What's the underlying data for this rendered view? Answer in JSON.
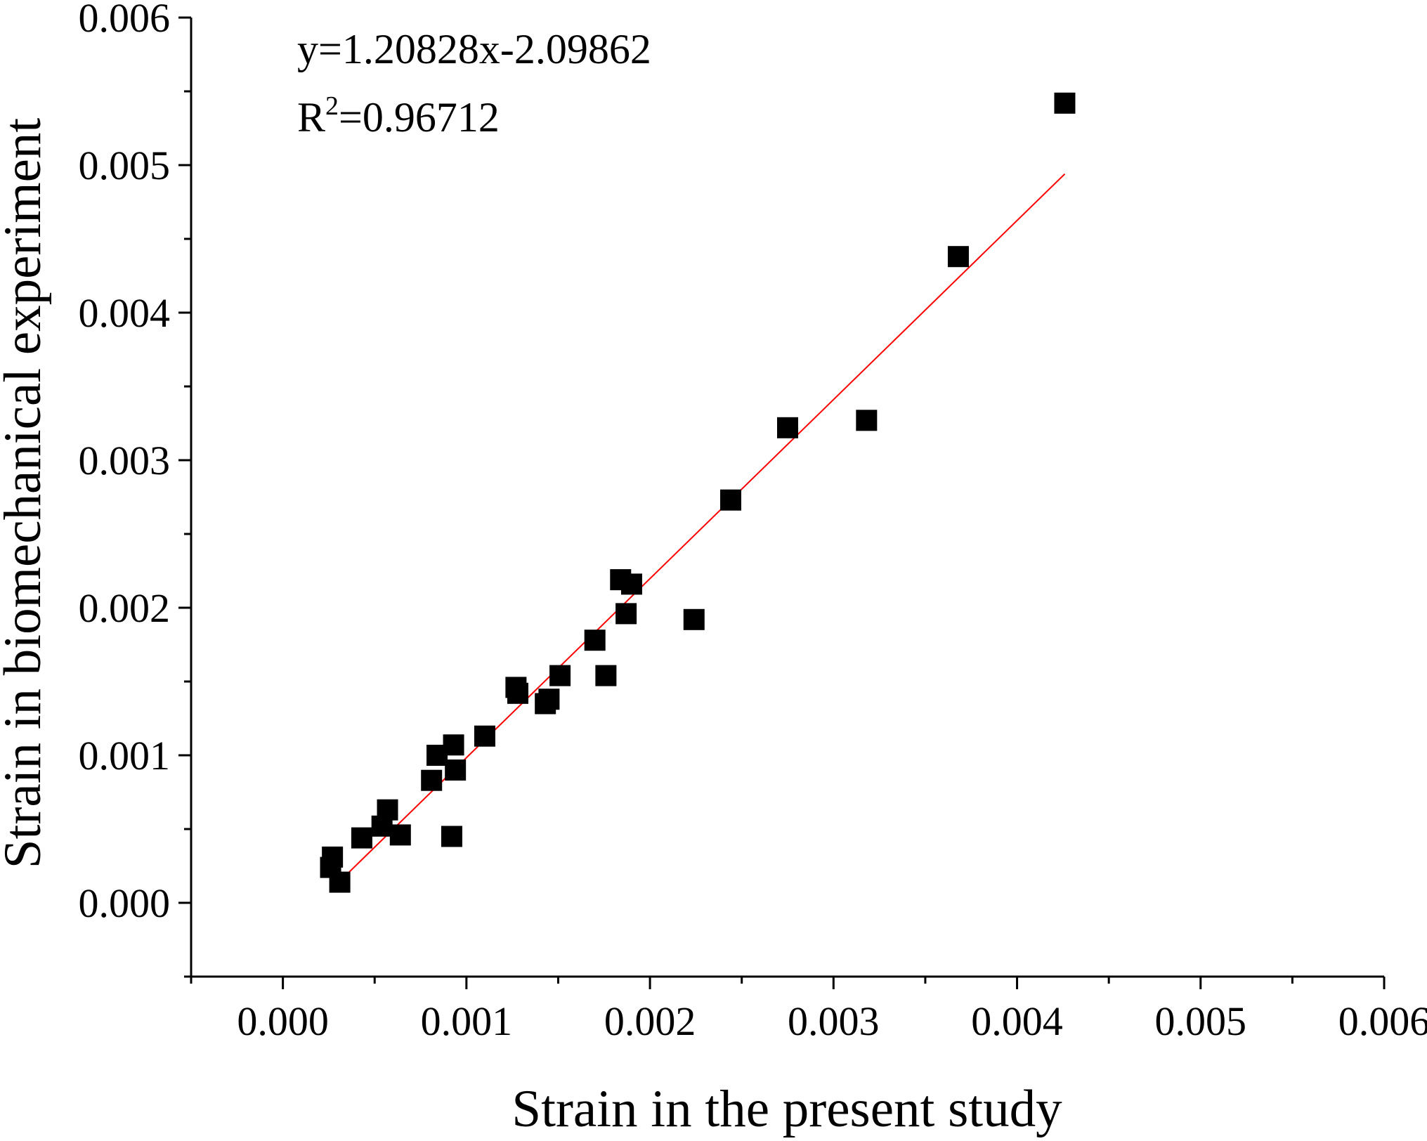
{
  "chart_data": {
    "type": "scatter",
    "xlabel": "Strain in the present study",
    "ylabel": "Strain in biomechanical experiment",
    "xlim": [
      -0.0005,
      0.006
    ],
    "ylim": [
      -0.0005,
      0.006
    ],
    "x_ticks": [
      "0.000",
      "0.001",
      "0.002",
      "0.003",
      "0.004",
      "0.005",
      "0.006"
    ],
    "y_ticks": [
      "0.000",
      "0.001",
      "0.002",
      "0.003",
      "0.004",
      "0.005",
      "0.006"
    ],
    "grid": false,
    "marker": "square",
    "marker_color": "#000000",
    "fit_line_color": "#ff0000",
    "annotation": {
      "equation": "y=1.20828x-2.09862",
      "r2_prefix": "R",
      "r2_sup": "2",
      "r2_value": "=0.96712"
    },
    "fit_line": {
      "x": [
        0.00028,
        0.00426
      ],
      "y": [
        0.00011,
        0.00494
      ]
    },
    "series": [
      {
        "points": [
          [
            0.00426,
            0.00542
          ],
          [
            0.00368,
            0.00438
          ],
          [
            0.00318,
            0.00327
          ],
          [
            0.00275,
            0.00322
          ],
          [
            0.00244,
            0.00273
          ],
          [
            0.00224,
            0.00192
          ],
          [
            0.00184,
            0.00219
          ],
          [
            0.0019,
            0.00216
          ],
          [
            0.00187,
            0.00196
          ],
          [
            0.0017,
            0.00178
          ],
          [
            0.00176,
            0.00154
          ],
          [
            0.00151,
            0.00154
          ],
          [
            0.00127,
            0.00146
          ],
          [
            0.00128,
            0.00142
          ],
          [
            0.00145,
            0.00138
          ],
          [
            0.00143,
            0.00135
          ],
          [
            0.0011,
            0.00113
          ],
          [
            0.00093,
            0.00107
          ],
          [
            0.00084,
            0.001
          ],
          [
            0.00094,
            0.0009
          ],
          [
            0.00081,
            0.00083
          ],
          [
            0.00092,
            0.00045
          ],
          [
            0.00057,
            0.00063
          ],
          [
            0.00054,
            0.00052
          ],
          [
            0.00064,
            0.00046
          ],
          [
            0.00043,
            0.00044
          ],
          [
            0.00027,
            0.00031
          ],
          [
            0.00026,
            0.00024
          ],
          [
            0.00031,
            0.00014
          ]
        ]
      }
    ]
  }
}
